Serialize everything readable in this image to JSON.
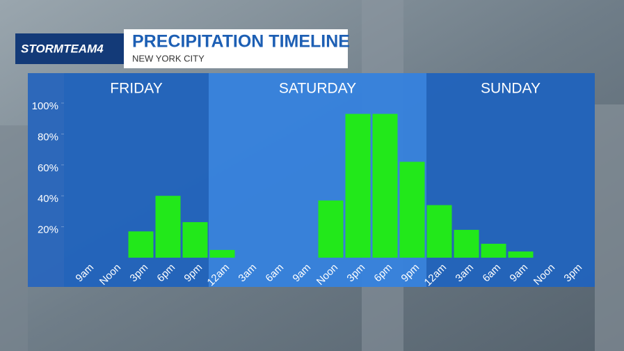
{
  "chart_data": {
    "type": "bar",
    "logo": "STORMTEAM4",
    "title": "PRECIPITATION TIMELINE",
    "subtitle": "NEW YORK CITY",
    "days": [
      "FRIDAY",
      "SATURDAY",
      "SUNDAY"
    ],
    "categories": [
      "9am",
      "Noon",
      "3pm",
      "6pm",
      "9pm",
      "12am",
      "3am",
      "6am",
      "9am",
      "Noon",
      "3pm",
      "6pm",
      "9pm",
      "12am",
      "3am",
      "6am",
      "9am",
      "Noon",
      "3pm"
    ],
    "values": [
      0,
      0,
      17,
      40,
      23,
      5,
      0,
      0,
      0,
      37,
      93,
      93,
      62,
      34,
      18,
      9,
      4,
      0,
      0
    ],
    "color": "#22e81a",
    "ylim": [
      0,
      100
    ],
    "yticks": [
      {
        "value": 20,
        "label": "20%"
      },
      {
        "value": 40,
        "label": "40%"
      },
      {
        "value": 60,
        "label": "60%"
      },
      {
        "value": 80,
        "label": "80%"
      },
      {
        "value": 100,
        "label": "100%"
      }
    ]
  }
}
